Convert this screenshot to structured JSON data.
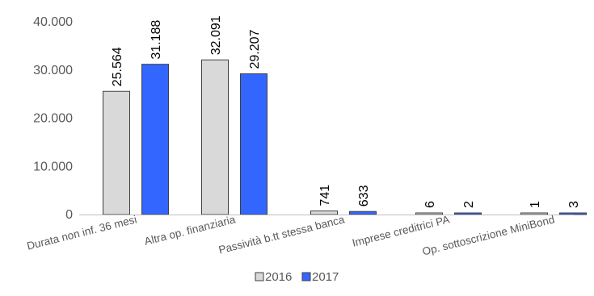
{
  "chart_data": {
    "type": "bar",
    "categories": [
      "Durata non inf. 36 mesi",
      "Altra op. finanziaria",
      "Passività b.tt stessa banca",
      "Imprese creditrici PA",
      "Op. sottoscrizione MiniBond"
    ],
    "series": [
      {
        "name": "2016",
        "values": [
          25564,
          32091,
          741,
          6,
          1
        ],
        "labels": [
          "25.564",
          "32.091",
          "741",
          "6",
          "1"
        ],
        "color": "#d9d9d9"
      },
      {
        "name": "2017",
        "values": [
          31188,
          29207,
          633,
          2,
          3
        ],
        "labels": [
          "31.188",
          "29.207",
          "633",
          "2",
          "3"
        ],
        "color": "#3366ff"
      }
    ],
    "yticks": [
      0,
      10000,
      20000,
      30000,
      40000
    ],
    "ytick_labels": [
      "0",
      "10.000",
      "20.000",
      "30.000",
      "40.000"
    ],
    "ylim": [
      0,
      40000
    ],
    "grid": false,
    "legend": "bottom"
  }
}
